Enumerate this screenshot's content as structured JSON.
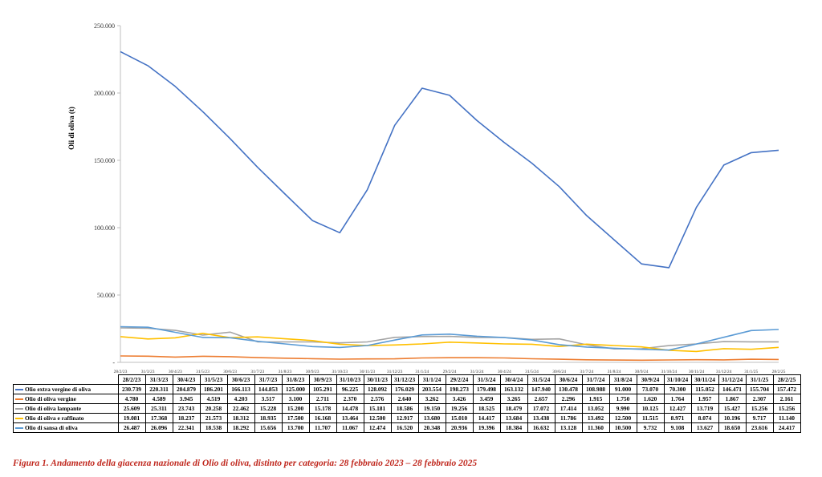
{
  "caption": "Figura 1. Andamento della giacenza nazionale di Olio di oliva, distinto per categoria: 28 febbraio 2023 – 28 febbraio 2025",
  "chart_data": {
    "type": "line",
    "title": "",
    "xlabel": "",
    "ylabel": "Oli di oliva (t)",
    "ylim": [
      0,
      250000
    ],
    "yticks": [
      "-",
      "50.000",
      "100.000",
      "150.000",
      "200.000",
      "250.000"
    ],
    "grid": false,
    "legend": "table-below",
    "x": [
      "28/2/23",
      "31/3/23",
      "30/4/23",
      "31/5/23",
      "30/6/23",
      "31/7/23",
      "31/8/23",
      "30/9/23",
      "31/10/23",
      "30/11/23",
      "31/12/23",
      "31/1/24",
      "29/2/24",
      "31/3/24",
      "30/4/24",
      "31/5/24",
      "30/6/24",
      "31/7/24",
      "31/8/24",
      "30/9/24",
      "31/10/24",
      "30/11/24",
      "31/12/24",
      "31/1/25",
      "28/2/25"
    ],
    "series": [
      {
        "name": "Olio extra vergine di oliva",
        "color": "#4472c4",
        "values": [
          230739,
          220311,
          204879,
          186201,
          166113,
          144853,
          125000,
          105291,
          96225,
          128092,
          176029,
          203554,
          198273,
          179498,
          163132,
          147940,
          130478,
          108988,
          91000,
          73070,
          70300,
          115052,
          146471,
          155704,
          157472
        ],
        "labels": [
          "230.739",
          "220.311",
          "204.879",
          "186.201",
          "166.113",
          "144.853",
          "125.000",
          "105.291",
          "96.225",
          "128.092",
          "176.029",
          "203.554",
          "198.273",
          "179.498",
          "163.132",
          "147.940",
          "130.478",
          "108.988",
          "91.000",
          "73.070",
          "70.300",
          "115.052",
          "146.471",
          "155.704",
          "157.472"
        ]
      },
      {
        "name": "Olio di oliva vergine",
        "color": "#ed7d31",
        "values": [
          4780,
          4589,
          3945,
          4519,
          4203,
          3517,
          3100,
          2711,
          2370,
          2576,
          2640,
          3262,
          3426,
          3459,
          3265,
          2657,
          2296,
          1915,
          1750,
          1620,
          1764,
          1957,
          1867,
          2307,
          2161
        ],
        "labels": [
          "4.780",
          "4.589",
          "3.945",
          "4.519",
          "4.203",
          "3.517",
          "3.100",
          "2.711",
          "2.370",
          "2.576",
          "2.640",
          "3.262",
          "3.426",
          "3.459",
          "3.265",
          "2.657",
          "2.296",
          "1.915",
          "1.750",
          "1.620",
          "1.764",
          "1.957",
          "1.867",
          "2.307",
          "2.161"
        ]
      },
      {
        "name": "Olio di oliva lampante",
        "color": "#a5a5a5",
        "values": [
          25609,
          25311,
          23743,
          20258,
          22462,
          15228,
          15200,
          15178,
          14478,
          15181,
          18586,
          19150,
          19256,
          18525,
          18479,
          17072,
          17414,
          13052,
          9990,
          10125,
          12427,
          13719,
          15427,
          15256,
          15256
        ],
        "labels": [
          "25.609",
          "25.311",
          "23.743",
          "20.258",
          "22.462",
          "15.228",
          "15.200",
          "15.178",
          "14.478",
          "15.181",
          "18.586",
          "19.150",
          "19.256",
          "18.525",
          "18.479",
          "17.072",
          "17.414",
          "13.052",
          "9.990",
          "10.125",
          "12.427",
          "13.719",
          "15.427",
          "15.256",
          "15.256"
        ]
      },
      {
        "name": "Olio di oliva e raffinato",
        "color": "#ffc000",
        "values": [
          19081,
          17368,
          18237,
          21573,
          18312,
          18935,
          17500,
          16168,
          13464,
          12500,
          12917,
          13680,
          15010,
          14417,
          13684,
          13438,
          11786,
          13492,
          12500,
          11515,
          8971,
          8074,
          10196,
          9717,
          11140
        ],
        "labels": [
          "19.081",
          "17.368",
          "18.237",
          "21.573",
          "18.312",
          "18.935",
          "17.500",
          "16.168",
          "13.464",
          "12.500",
          "12.917",
          "13.680",
          "15.010",
          "14.417",
          "13.684",
          "13.438",
          "11.786",
          "13.492",
          "12.500",
          "11.515",
          "8.971",
          "8.074",
          "10.196",
          "9.717",
          "11.140"
        ]
      },
      {
        "name": "Olio di sansa di oliva",
        "color": "#5b9bd5",
        "values": [
          26487,
          26096,
          22341,
          18538,
          18292,
          15656,
          13700,
          11707,
          11067,
          12474,
          16520,
          20348,
          20936,
          19396,
          18384,
          16632,
          13128,
          11360,
          10500,
          9732,
          9108,
          13627,
          18650,
          23616,
          24417
        ],
        "labels": [
          "26.487",
          "26.096",
          "22.341",
          "18.538",
          "18.292",
          "15.656",
          "13.700",
          "11.707",
          "11.067",
          "12.474",
          "16.520",
          "20.348",
          "20.936",
          "19.396",
          "18.384",
          "16.632",
          "13.128",
          "11.360",
          "10.500",
          "9.732",
          "9.108",
          "13.627",
          "18.650",
          "23.616",
          "24.417"
        ]
      }
    ]
  }
}
